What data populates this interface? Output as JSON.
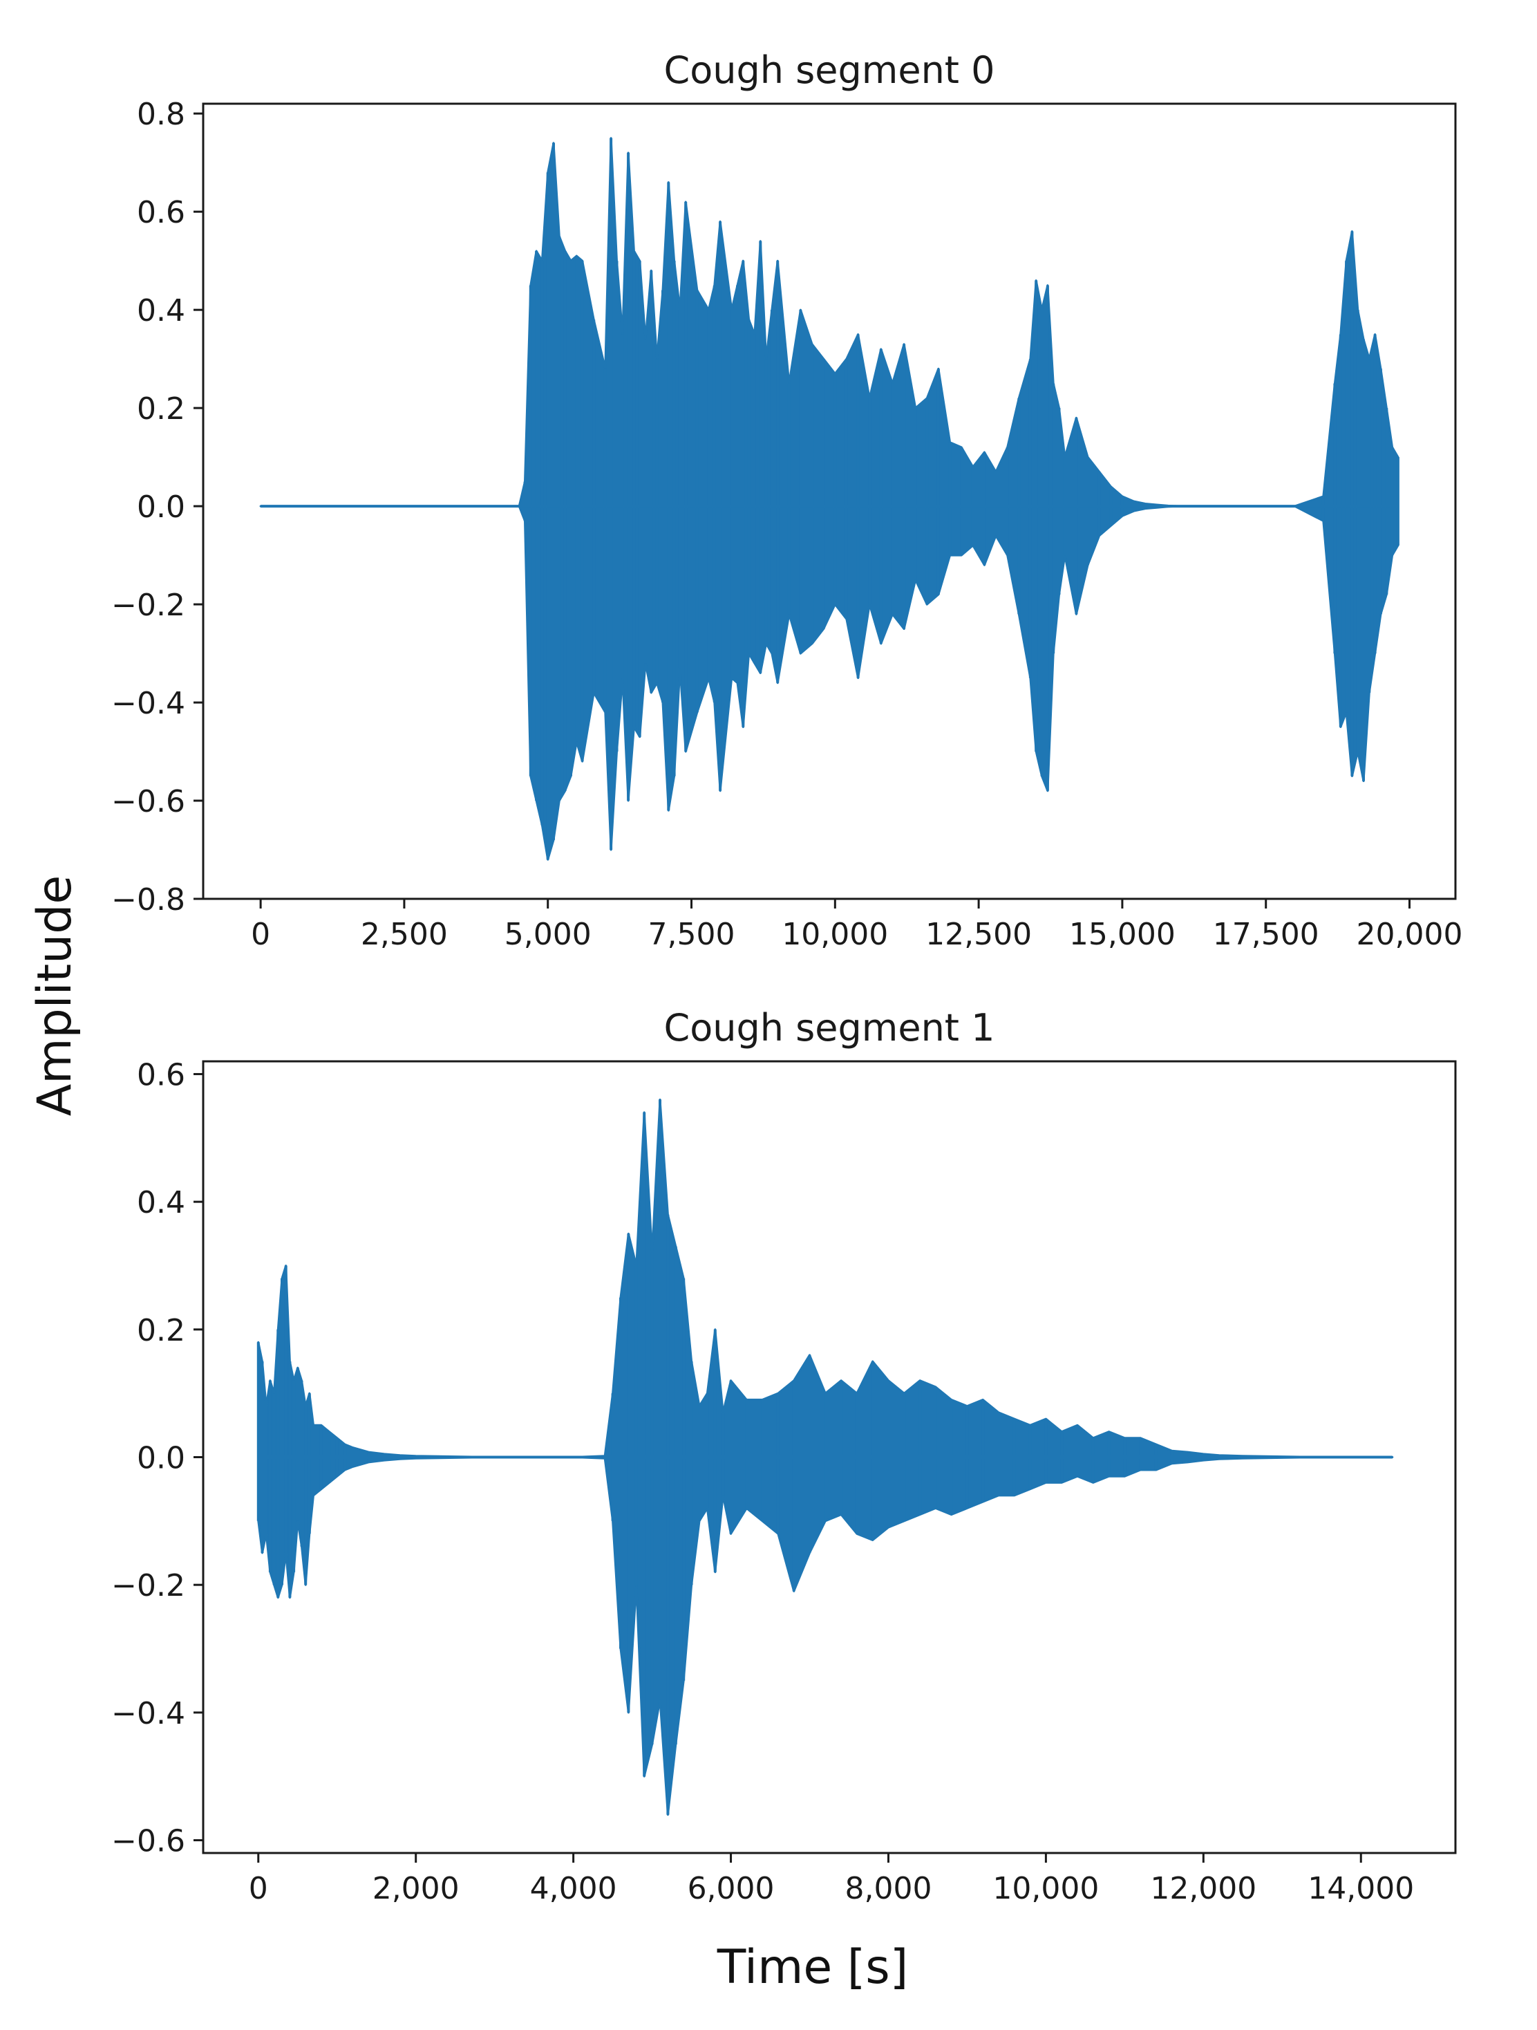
{
  "figure": {
    "ylabel": "Amplitude",
    "xlabel": "Time [s]",
    "line_color": "#1f77b4"
  },
  "chart_data": [
    {
      "type": "line",
      "title": "Cough segment 0",
      "xlim": [
        -1000,
        20800
      ],
      "ylim": [
        -0.8,
        0.82
      ],
      "xticks": [
        0,
        2500,
        5000,
        7500,
        10000,
        12500,
        15000,
        17500,
        20000
      ],
      "xtick_labels": [
        "0",
        "2,500",
        "5,000",
        "7,500",
        "10,000",
        "12,500",
        "15,000",
        "17,500",
        "20,000"
      ],
      "yticks": [
        -0.8,
        -0.6,
        -0.4,
        -0.2,
        0.0,
        0.2,
        0.4,
        0.6,
        0.8
      ],
      "ytick_labels": [
        "−0.8",
        "−0.6",
        "−0.4",
        "−0.2",
        "0.0",
        "0.2",
        "0.4",
        "0.6",
        "0.8"
      ],
      "grid": false,
      "series": [
        {
          "x": [
            0,
            4500,
            4600,
            4700,
            4800,
            4900,
            5000,
            5100,
            5200,
            5300,
            5400,
            5500,
            5600,
            5800,
            6000,
            6100,
            6200,
            6300,
            6400,
            6500,
            6600,
            6700,
            6800,
            6900,
            7000,
            7100,
            7200,
            7300,
            7400,
            7600,
            7800,
            7900,
            8000,
            8200,
            8300,
            8400,
            8500,
            8600,
            8700,
            8800,
            8900,
            9000,
            9200,
            9400,
            9600,
            9800,
            10000,
            10200,
            10400,
            10600,
            10800,
            11000,
            11200,
            11400,
            11600,
            11800,
            12000,
            12200,
            12400,
            12600,
            12800,
            13000,
            13200,
            13400,
            13500,
            13600,
            13700,
            13800,
            13900,
            14000,
            14200,
            14400,
            14600,
            14800,
            15000,
            15200,
            15400,
            15600,
            15800,
            16000,
            16500,
            17000,
            17500,
            18000,
            18500,
            18700,
            18800,
            18900,
            19000,
            19100,
            19200,
            19300,
            19400,
            19500,
            19600,
            19700,
            19800
          ],
          "y": [
            0,
            0,
            0.05,
            0.45,
            0.52,
            0.5,
            0.68,
            0.74,
            0.55,
            0.52,
            0.5,
            0.51,
            0.5,
            0.38,
            0.28,
            0.75,
            0.5,
            0.35,
            0.72,
            0.52,
            0.5,
            0.34,
            0.48,
            0.3,
            0.44,
            0.66,
            0.5,
            0.4,
            0.62,
            0.44,
            0.4,
            0.45,
            0.58,
            0.4,
            0.45,
            0.5,
            0.38,
            0.35,
            0.54,
            0.3,
            0.4,
            0.5,
            0.25,
            0.4,
            0.33,
            0.3,
            0.27,
            0.3,
            0.35,
            0.22,
            0.32,
            0.25,
            0.33,
            0.2,
            0.22,
            0.28,
            0.13,
            0.12,
            0.08,
            0.11,
            0.07,
            0.12,
            0.22,
            0.3,
            0.46,
            0.4,
            0.45,
            0.25,
            0.2,
            0.1,
            0.18,
            0.1,
            0.07,
            0.04,
            0.02,
            0.01,
            0.005,
            0.003,
            0.001,
            0,
            0,
            0,
            0,
            0,
            0.02,
            0.25,
            0.35,
            0.5,
            0.56,
            0.4,
            0.34,
            0.3,
            0.35,
            0.28,
            0.2,
            0.12,
            0.1
          ],
          "y_min": [
            0,
            0,
            -0.03,
            -0.55,
            -0.6,
            -0.65,
            -0.72,
            -0.68,
            -0.6,
            -0.58,
            -0.55,
            -0.48,
            -0.52,
            -0.38,
            -0.42,
            -0.7,
            -0.5,
            -0.35,
            -0.6,
            -0.45,
            -0.47,
            -0.32,
            -0.38,
            -0.36,
            -0.4,
            -0.62,
            -0.55,
            -0.33,
            -0.5,
            -0.42,
            -0.35,
            -0.4,
            -0.58,
            -0.35,
            -0.36,
            -0.45,
            -0.3,
            -0.32,
            -0.34,
            -0.28,
            -0.3,
            -0.36,
            -0.22,
            -0.3,
            -0.28,
            -0.25,
            -0.2,
            -0.23,
            -0.35,
            -0.2,
            -0.28,
            -0.22,
            -0.25,
            -0.15,
            -0.2,
            -0.18,
            -0.1,
            -0.1,
            -0.08,
            -0.12,
            -0.06,
            -0.1,
            -0.22,
            -0.35,
            -0.5,
            -0.55,
            -0.58,
            -0.3,
            -0.18,
            -0.1,
            -0.22,
            -0.12,
            -0.06,
            -0.04,
            -0.02,
            -0.01,
            -0.005,
            -0.003,
            -0.001,
            0,
            0,
            0,
            0,
            0,
            -0.03,
            -0.3,
            -0.45,
            -0.42,
            -0.55,
            -0.5,
            -0.56,
            -0.38,
            -0.3,
            -0.22,
            -0.18,
            -0.1,
            -0.08
          ]
        }
      ]
    },
    {
      "type": "line",
      "title": "Cough segment 1",
      "xlim": [
        -700,
        15200
      ],
      "ylim": [
        -0.62,
        0.62
      ],
      "xticks": [
        0,
        2000,
        4000,
        6000,
        8000,
        10000,
        12000,
        14000
      ],
      "xtick_labels": [
        "0",
        "2,000",
        "4,000",
        "6,000",
        "8,000",
        "10,000",
        "12,000",
        "14,000"
      ],
      "yticks": [
        -0.6,
        -0.4,
        -0.2,
        0.0,
        0.2,
        0.4,
        0.6
      ],
      "ytick_labels": [
        "−0.6",
        "−0.4",
        "−0.2",
        "0.0",
        "0.2",
        "0.4",
        "0.6"
      ],
      "grid": false,
      "series": [
        {
          "x": [
            0,
            50,
            100,
            150,
            200,
            250,
            300,
            350,
            400,
            450,
            500,
            550,
            600,
            650,
            700,
            800,
            900,
            1000,
            1100,
            1200,
            1400,
            1600,
            1800,
            2000,
            2500,
            3000,
            3500,
            4000,
            4400,
            4500,
            4600,
            4700,
            4800,
            4900,
            5000,
            5100,
            5200,
            5300,
            5400,
            5500,
            5600,
            5700,
            5800,
            5900,
            6000,
            6200,
            6400,
            6600,
            6800,
            7000,
            7200,
            7400,
            7600,
            7800,
            8000,
            8200,
            8400,
            8600,
            8800,
            9000,
            9200,
            9400,
            9600,
            9800,
            10000,
            10200,
            10400,
            10600,
            10800,
            11000,
            11200,
            11400,
            11600,
            11800,
            12000,
            12200,
            12500,
            13000,
            13500,
            14000,
            14400
          ],
          "y": [
            0.18,
            0.15,
            0.08,
            0.12,
            0.1,
            0.2,
            0.28,
            0.3,
            0.15,
            0.12,
            0.14,
            0.12,
            0.08,
            0.1,
            0.05,
            0.05,
            0.04,
            0.03,
            0.02,
            0.015,
            0.008,
            0.005,
            0.003,
            0.002,
            0.001,
            0,
            0,
            0,
            0.002,
            0.1,
            0.25,
            0.35,
            0.3,
            0.54,
            0.32,
            0.56,
            0.38,
            0.33,
            0.28,
            0.15,
            0.08,
            0.1,
            0.2,
            0.07,
            0.12,
            0.09,
            0.09,
            0.1,
            0.12,
            0.16,
            0.1,
            0.12,
            0.1,
            0.15,
            0.12,
            0.1,
            0.12,
            0.11,
            0.09,
            0.08,
            0.09,
            0.07,
            0.06,
            0.05,
            0.06,
            0.04,
            0.05,
            0.03,
            0.04,
            0.03,
            0.03,
            0.02,
            0.01,
            0.008,
            0.005,
            0.003,
            0.002,
            0.001,
            0,
            0,
            0
          ],
          "y_min": [
            -0.1,
            -0.15,
            -0.12,
            -0.18,
            -0.2,
            -0.22,
            -0.2,
            -0.15,
            -0.22,
            -0.18,
            -0.1,
            -0.14,
            -0.2,
            -0.12,
            -0.06,
            -0.05,
            -0.04,
            -0.03,
            -0.02,
            -0.015,
            -0.008,
            -0.005,
            -0.003,
            -0.002,
            -0.001,
            0,
            0,
            0,
            -0.002,
            -0.1,
            -0.3,
            -0.4,
            -0.2,
            -0.5,
            -0.45,
            -0.38,
            -0.56,
            -0.45,
            -0.35,
            -0.2,
            -0.1,
            -0.08,
            -0.18,
            -0.06,
            -0.12,
            -0.08,
            -0.1,
            -0.12,
            -0.21,
            -0.15,
            -0.1,
            -0.09,
            -0.12,
            -0.13,
            -0.11,
            -0.1,
            -0.09,
            -0.08,
            -0.09,
            -0.08,
            -0.07,
            -0.06,
            -0.06,
            -0.05,
            -0.04,
            -0.04,
            -0.03,
            -0.04,
            -0.03,
            -0.03,
            -0.02,
            -0.02,
            -0.01,
            -0.008,
            -0.005,
            -0.003,
            -0.002,
            -0.001,
            0,
            0,
            0
          ]
        }
      ]
    }
  ]
}
